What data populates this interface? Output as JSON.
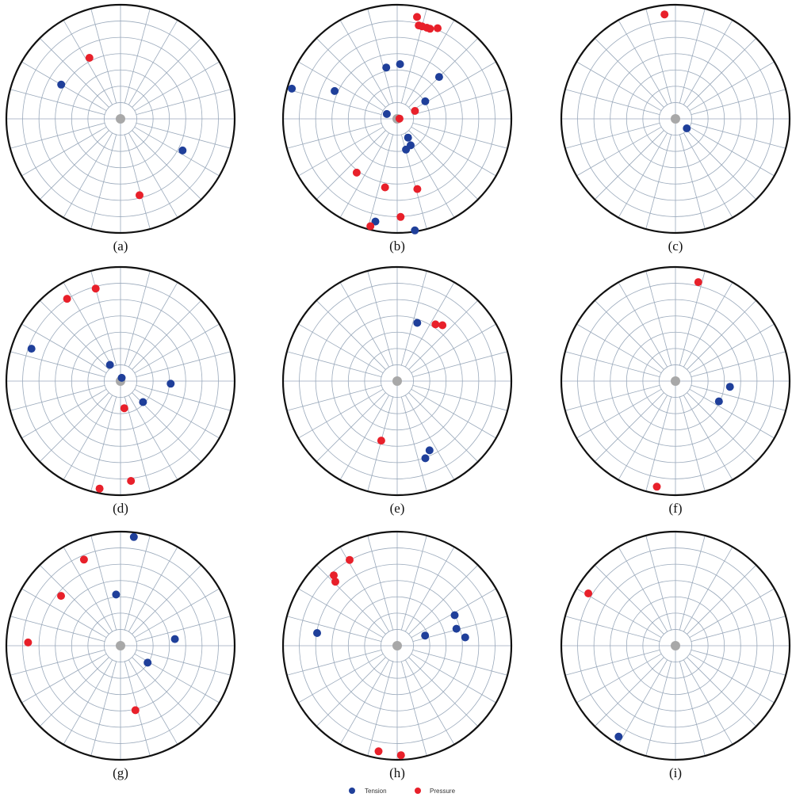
{
  "legend": [
    {
      "label": "Tension",
      "color": "#1f3f9a"
    },
    {
      "label": "Pressure",
      "color": "#e8202a"
    }
  ],
  "chart_data": [
    {
      "type": "scatter",
      "panel": "(a)",
      "polar": true,
      "series": [
        {
          "name": "Tension",
          "points": [
            {
              "azimuth": 300,
              "radius": 0.6
            },
            {
              "azimuth": 117,
              "radius": 0.61
            }
          ]
        },
        {
          "name": "Pressure",
          "points": [
            {
              "azimuth": 333,
              "radius": 0.6
            },
            {
              "azimuth": 166,
              "radius": 0.69
            }
          ]
        }
      ]
    },
    {
      "type": "scatter",
      "panel": "(b)",
      "polar": true,
      "series": [
        {
          "name": "Tension",
          "points": [
            {
              "azimuth": 286,
              "radius": 0.96
            },
            {
              "azimuth": 294,
              "radius": 0.6
            },
            {
              "azimuth": 348,
              "radius": 0.46
            },
            {
              "azimuth": 3,
              "radius": 0.48
            },
            {
              "azimuth": 45,
              "radius": 0.52
            },
            {
              "azimuth": 58,
              "radius": 0.29
            },
            {
              "azimuth": 295,
              "radius": 0.1
            },
            {
              "azimuth": 150,
              "radius": 0.19
            },
            {
              "azimuth": 153,
              "radius": 0.26
            },
            {
              "azimuth": 164,
              "radius": 0.28
            },
            {
              "azimuth": 192,
              "radius": 0.92
            },
            {
              "azimuth": 171,
              "radius": 0.99
            }
          ]
        },
        {
          "name": "Pressure",
          "points": [
            {
              "azimuth": 11,
              "radius": 0.91
            },
            {
              "azimuth": 13,
              "radius": 0.84
            },
            {
              "azimuth": 15,
              "radius": 0.84
            },
            {
              "azimuth": 18,
              "radius": 0.84
            },
            {
              "azimuth": 20,
              "radius": 0.84
            },
            {
              "azimuth": 24,
              "radius": 0.87
            },
            {
              "azimuth": 85,
              "radius": 0.02
            },
            {
              "azimuth": 66,
              "radius": 0.17
            },
            {
              "azimuth": 217,
              "radius": 0.59
            },
            {
              "azimuth": 190,
              "radius": 0.61
            },
            {
              "azimuth": 164,
              "radius": 0.64
            },
            {
              "azimuth": 178,
              "radius": 0.86
            },
            {
              "azimuth": 194,
              "radius": 0.97
            }
          ]
        }
      ]
    },
    {
      "type": "scatter",
      "panel": "(c)",
      "polar": true,
      "series": [
        {
          "name": "Tension",
          "points": [
            {
              "azimuth": 130,
              "radius": 0.13
            }
          ]
        },
        {
          "name": "Pressure",
          "points": [
            {
              "azimuth": 354,
              "radius": 0.92
            }
          ]
        }
      ]
    },
    {
      "type": "scatter",
      "panel": "(d)",
      "polar": true,
      "series": [
        {
          "name": "Tension",
          "points": [
            {
              "azimuth": 290,
              "radius": 0.83
            },
            {
              "azimuth": 327,
              "radius": 0.17
            },
            {
              "azimuth": 20,
              "radius": 0.03
            },
            {
              "azimuth": 93,
              "radius": 0.44
            },
            {
              "azimuth": 133,
              "radius": 0.27
            }
          ]
        },
        {
          "name": "Pressure",
          "points": [
            {
              "azimuth": 327,
              "radius": 0.86
            },
            {
              "azimuth": 345,
              "radius": 0.84
            },
            {
              "azimuth": 172,
              "radius": 0.24
            },
            {
              "azimuth": 174,
              "radius": 0.88
            },
            {
              "azimuth": 191,
              "radius": 0.96
            }
          ]
        }
      ]
    },
    {
      "type": "scatter",
      "panel": "(e)",
      "polar": true,
      "series": [
        {
          "name": "Tension",
          "points": [
            {
              "azimuth": 19,
              "radius": 0.54
            },
            {
              "azimuth": 155,
              "radius": 0.67
            },
            {
              "azimuth": 160,
              "radius": 0.72
            }
          ]
        },
        {
          "name": "Pressure",
          "points": [
            {
              "azimuth": 34,
              "radius": 0.6
            },
            {
              "azimuth": 39,
              "radius": 0.63
            },
            {
              "azimuth": 195,
              "radius": 0.54
            }
          ]
        }
      ]
    },
    {
      "type": "scatter",
      "panel": "(f)",
      "polar": true,
      "series": [
        {
          "name": "Tension",
          "points": [
            {
              "azimuth": 96,
              "radius": 0.48
            },
            {
              "azimuth": 115,
              "radius": 0.42
            }
          ]
        },
        {
          "name": "Pressure",
          "points": [
            {
              "azimuth": 13,
              "radius": 0.89
            },
            {
              "azimuth": 190,
              "radius": 0.94
            }
          ]
        }
      ]
    },
    {
      "type": "scatter",
      "panel": "(g)",
      "polar": true,
      "series": [
        {
          "name": "Tension",
          "points": [
            {
              "azimuth": 7,
              "radius": 0.96
            },
            {
              "azimuth": 355,
              "radius": 0.45
            },
            {
              "azimuth": 83,
              "radius": 0.48
            },
            {
              "azimuth": 122,
              "radius": 0.28
            }
          ]
        },
        {
          "name": "Pressure",
          "points": [
            {
              "azimuth": 337,
              "radius": 0.82
            },
            {
              "azimuth": 310,
              "radius": 0.68
            },
            {
              "azimuth": 272,
              "radius": 0.81
            },
            {
              "azimuth": 167,
              "radius": 0.58
            }
          ]
        }
      ]
    },
    {
      "type": "scatter",
      "panel": "(h)",
      "polar": true,
      "series": [
        {
          "name": "Tension",
          "points": [
            {
              "azimuth": 279,
              "radius": 0.71
            },
            {
              "azimuth": 70,
              "radius": 0.26
            },
            {
              "azimuth": 62,
              "radius": 0.57
            },
            {
              "azimuth": 74,
              "radius": 0.54
            },
            {
              "azimuth": 83,
              "radius": 0.6
            }
          ]
        },
        {
          "name": "Pressure",
          "points": [
            {
              "azimuth": 331,
              "radius": 0.86
            },
            {
              "azimuth": 318,
              "radius": 0.83
            },
            {
              "azimuth": 316,
              "radius": 0.78
            },
            {
              "azimuth": 190,
              "radius": 0.94
            },
            {
              "azimuth": 178,
              "radius": 0.96
            }
          ]
        }
      ]
    },
    {
      "type": "scatter",
      "panel": "(i)",
      "polar": true,
      "series": [
        {
          "name": "Tension",
          "points": [
            {
              "azimuth": 212,
              "radius": 0.94
            }
          ]
        },
        {
          "name": "Pressure",
          "points": [
            {
              "azimuth": 301,
              "radius": 0.89
            }
          ]
        }
      ]
    }
  ]
}
